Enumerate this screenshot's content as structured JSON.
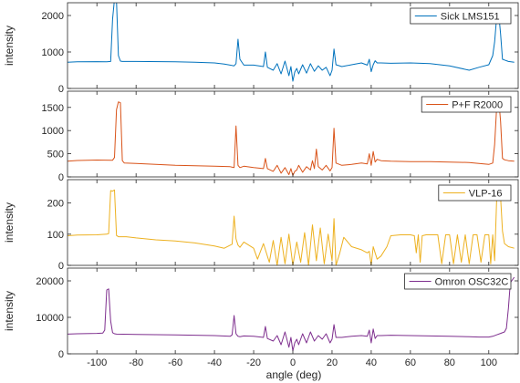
{
  "figure": {
    "xlabel": "angle (deg)"
  },
  "chart_data": [
    {
      "type": "line",
      "series": [
        {
          "name": "Sick LMS151",
          "color": "#0072bd",
          "x": [
            -115,
            -110,
            -100,
            -95,
            -93,
            -92,
            -91,
            -90,
            -89,
            -88,
            -87,
            -80,
            -60,
            -50,
            -40,
            -35,
            -30,
            -29,
            -28,
            -27,
            -25,
            -20,
            -15,
            -14,
            -13,
            -10,
            -8,
            -6,
            -4,
            -2,
            -1,
            0,
            1,
            2,
            3,
            5,
            7,
            9,
            11,
            13,
            15,
            17,
            19,
            20,
            21,
            22,
            25,
            30,
            35,
            38,
            39,
            40,
            41,
            42,
            43,
            45,
            50,
            60,
            70,
            80,
            90,
            95,
            100,
            102,
            103,
            104,
            105,
            106,
            107,
            108,
            110,
            113
          ],
          "y": [
            720,
            730,
            735,
            730,
            740,
            1900,
            2450,
            2400,
            900,
            750,
            740,
            740,
            730,
            720,
            700,
            670,
            620,
            680,
            1350,
            800,
            640,
            640,
            600,
            1000,
            580,
            500,
            680,
            400,
            750,
            350,
            600,
            200,
            450,
            550,
            400,
            650,
            420,
            680,
            470,
            620,
            500,
            580,
            350,
            500,
            1080,
            650,
            600,
            650,
            700,
            640,
            800,
            460,
            650,
            760,
            700,
            700,
            690,
            700,
            680,
            620,
            500,
            580,
            650,
            900,
            1280,
            1950,
            2100,
            1500,
            800,
            780,
            740,
            720
          ]
        }
      ],
      "xlim": [
        -115,
        115
      ],
      "ylim": [
        0,
        2350
      ],
      "yticks": [
        0,
        1000,
        2000
      ],
      "ylabel": "intensity",
      "legend": "top-right"
    },
    {
      "type": "line",
      "series": [
        {
          "name": "P+F R2000",
          "color": "#d95319",
          "x": [
            -115,
            -110,
            -100,
            -92,
            -91,
            -90,
            -89,
            -88,
            -87,
            -86,
            -80,
            -70,
            -60,
            -50,
            -40,
            -32,
            -30,
            -29,
            -28,
            -27,
            -25,
            -20,
            -15,
            -14,
            -13,
            -10,
            -8,
            -6,
            -4,
            -2,
            -1,
            0,
            1,
            2,
            3,
            5,
            7,
            9,
            10,
            11,
            12,
            13,
            15,
            17,
            19,
            20,
            21,
            22,
            25,
            30,
            35,
            38,
            39,
            40,
            41,
            42,
            43,
            45,
            50,
            60,
            70,
            80,
            90,
            95,
            100,
            102,
            103,
            104,
            105,
            106,
            107,
            108,
            110,
            113
          ],
          "y": [
            340,
            355,
            365,
            360,
            420,
            1450,
            1620,
            1600,
            350,
            300,
            290,
            270,
            250,
            240,
            230,
            220,
            200,
            1100,
            250,
            200,
            230,
            200,
            180,
            400,
            180,
            120,
            250,
            80,
            200,
            50,
            180,
            30,
            120,
            150,
            250,
            100,
            220,
            150,
            350,
            180,
            600,
            220,
            150,
            250,
            130,
            200,
            1050,
            300,
            250,
            270,
            300,
            280,
            500,
            250,
            550,
            320,
            380,
            350,
            340,
            330,
            330,
            320,
            310,
            290,
            270,
            300,
            700,
            1500,
            1720,
            1200,
            400,
            370,
            350,
            340
          ]
        }
      ],
      "xlim": [
        -115,
        115
      ],
      "ylim": [
        0,
        1850
      ],
      "yticks": [
        0,
        500,
        1000,
        1500
      ],
      "ylabel": "",
      "legend": "top-right"
    },
    {
      "type": "line",
      "series": [
        {
          "name": "VLP-16",
          "color": "#edb120",
          "x": [
            -115,
            -110,
            -100,
            -95,
            -94,
            -93,
            -92,
            -91,
            -90,
            -89,
            -85,
            -80,
            -70,
            -60,
            -50,
            -40,
            -35,
            -31,
            -30,
            -29,
            -28,
            -27,
            -25,
            -20,
            -18,
            -15,
            -12,
            -10,
            -8,
            -6,
            -4,
            -2,
            0,
            2,
            4,
            6,
            8,
            10,
            12,
            14,
            16,
            18,
            20,
            21,
            22,
            24,
            26,
            30,
            35,
            38,
            39,
            40,
            41,
            42,
            43,
            45,
            48,
            50,
            55,
            60,
            62,
            63,
            64,
            65,
            66,
            68,
            70,
            72,
            74,
            76,
            78,
            80,
            82,
            84,
            86,
            88,
            90,
            92,
            94,
            96,
            98,
            100,
            101,
            102,
            103,
            104,
            105,
            106,
            107,
            108,
            110,
            113
          ],
          "y": [
            95,
            97,
            98,
            100,
            102,
            240,
            238,
            242,
            96,
            92,
            92,
            88,
            82,
            78,
            72,
            62,
            55,
            68,
            158,
            85,
            65,
            58,
            75,
            55,
            20,
            70,
            10,
            80,
            0,
            90,
            5,
            100,
            0,
            75,
            10,
            105,
            0,
            130,
            15,
            120,
            5,
            100,
            15,
            150,
            0,
            40,
            90,
            60,
            50,
            40,
            45,
            0,
            60,
            40,
            20,
            30,
            60,
            95,
            98,
            98,
            95,
            40,
            98,
            10,
            95,
            98,
            98,
            98,
            98,
            5,
            98,
            98,
            5,
            98,
            10,
            98,
            5,
            98,
            98,
            10,
            98,
            98,
            5,
            98,
            15,
            210,
            225,
            220,
            110,
            70,
            60,
            55
          ]
        }
      ],
      "xlim": [
        -115,
        115
      ],
      "ylim": [
        0,
        275
      ],
      "yticks": [
        0,
        100,
        200
      ],
      "ylabel": "intensity",
      "legend": "top-right"
    },
    {
      "type": "line",
      "series": [
        {
          "name": "Omron OSC32C",
          "color": "#7e2f8e",
          "x": [
            -115,
            -110,
            -100,
            -97,
            -96,
            -95,
            -94,
            -93,
            -92,
            -91,
            -90,
            -80,
            -60,
            -50,
            -40,
            -32,
            -31,
            -30,
            -29,
            -28,
            -27,
            -25,
            -20,
            -15,
            -14,
            -13,
            -10,
            -8,
            -6,
            -4,
            -2,
            -1,
            0,
            1,
            2,
            3,
            5,
            7,
            9,
            11,
            13,
            15,
            17,
            19,
            20,
            21,
            22,
            25,
            30,
            35,
            38,
            39,
            40,
            41,
            42,
            43,
            45,
            50,
            60,
            70,
            80,
            90,
            95,
            100,
            102,
            104,
            106,
            108,
            109,
            110,
            111,
            113
          ],
          "y": [
            5400,
            5500,
            5600,
            5700,
            6500,
            17500,
            17800,
            9000,
            5800,
            5500,
            5400,
            5300,
            5200,
            5100,
            5000,
            4800,
            5200,
            10500,
            5500,
            4800,
            4700,
            4900,
            4800,
            4500,
            7500,
            4200,
            3500,
            5000,
            2500,
            6000,
            1800,
            4500,
            800,
            3000,
            4000,
            2500,
            5500,
            3000,
            6000,
            3500,
            5000,
            4000,
            5500,
            3000,
            4000,
            8000,
            4500,
            4500,
            4800,
            5000,
            4800,
            6500,
            3000,
            6800,
            4200,
            5000,
            5000,
            5100,
            5000,
            4900,
            4800,
            4700,
            4600,
            4600,
            4800,
            5200,
            5600,
            6000,
            7000,
            12500,
            19500,
            21000
          ]
        }
      ],
      "xlim": [
        -115,
        115
      ],
      "ylim": [
        0,
        23500
      ],
      "yticks": [
        0,
        10000,
        20000
      ],
      "ylabel": "intensity",
      "legend": "top-right"
    }
  ],
  "xticks": [
    -100,
    -80,
    -60,
    -40,
    -20,
    0,
    20,
    40,
    60,
    80,
    100
  ]
}
